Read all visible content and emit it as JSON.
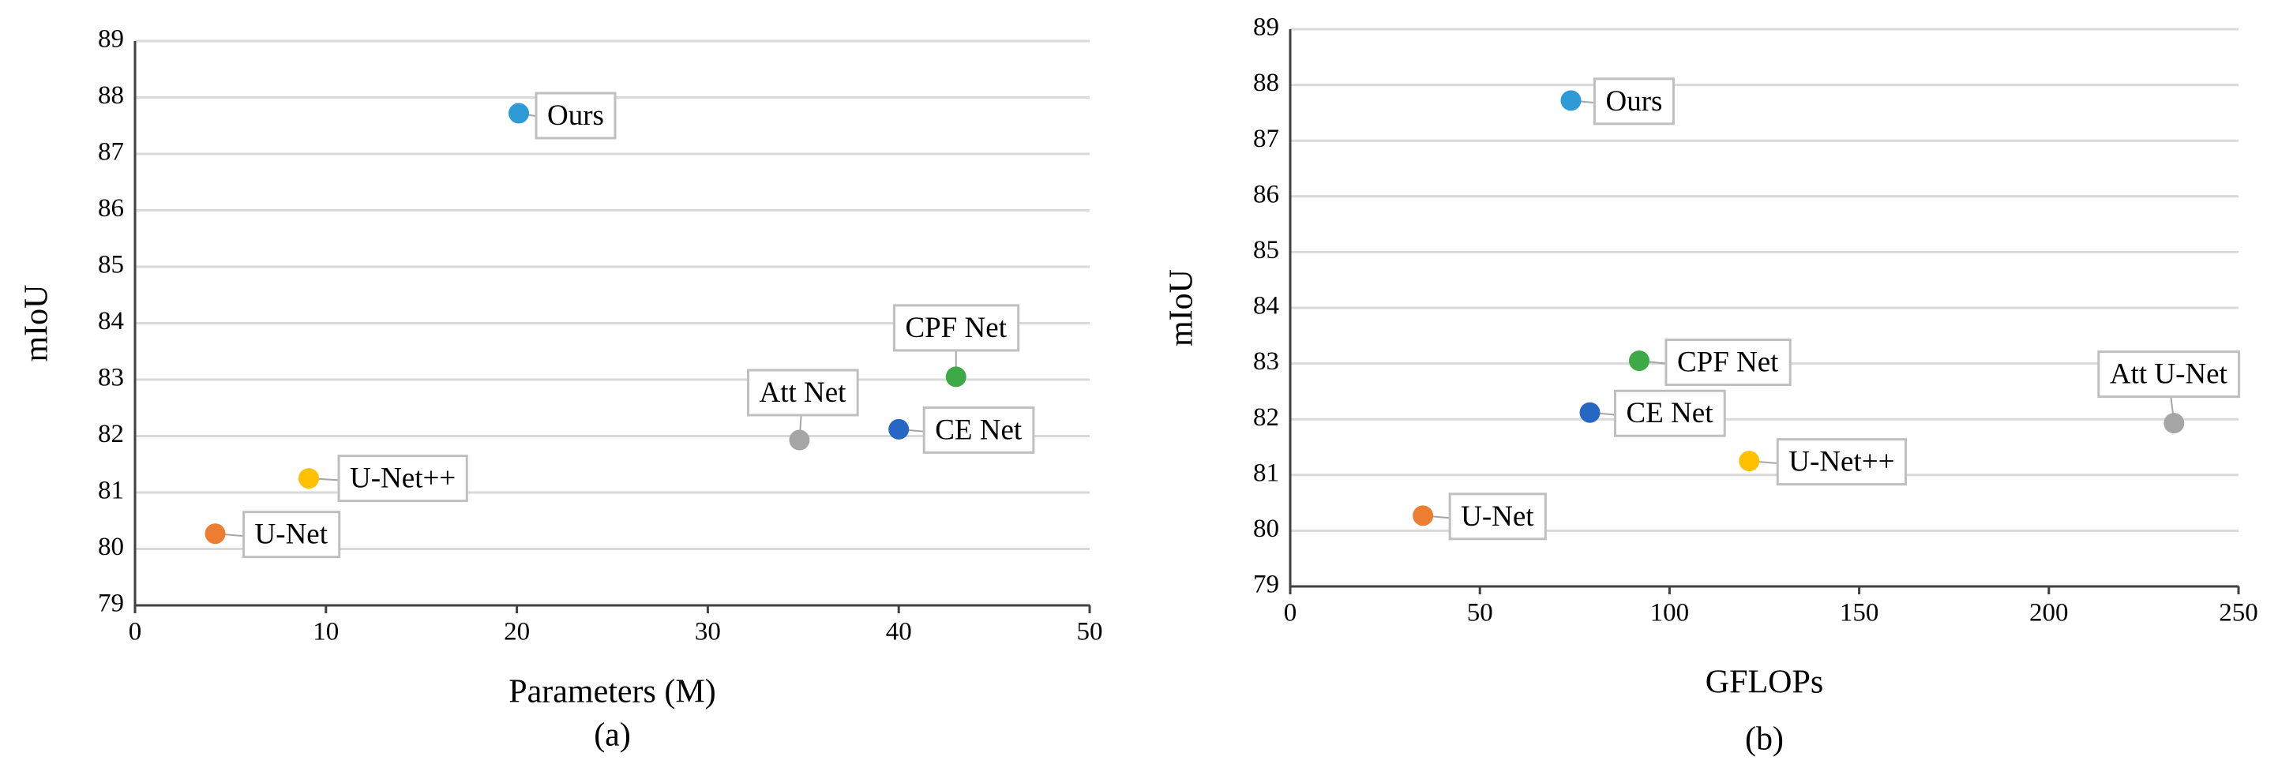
{
  "chart_data": [
    {
      "type": "scatter",
      "x_label": "Parameters (M)",
      "y_label": "mIoU",
      "caption": "(a)",
      "xlim": [
        0,
        50
      ],
      "xticks": [
        0,
        10,
        20,
        30,
        40,
        50
      ],
      "ylim": [
        79,
        89
      ],
      "yticks": [
        79,
        80,
        81,
        82,
        83,
        84,
        85,
        86,
        87,
        88,
        89
      ],
      "grid": true,
      "series": [
        {
          "name": "Ours",
          "color": "#2e9bd6",
          "x": [
            20.1
          ],
          "values": [
            87.72
          ]
        },
        {
          "name": "CPF Net",
          "color": "#3daa47",
          "x": [
            43.0
          ],
          "values": [
            83.05
          ]
        },
        {
          "name": "Att Net",
          "color": "#a5a5a5",
          "x": [
            34.8
          ],
          "values": [
            81.93
          ]
        },
        {
          "name": "CE Net",
          "color": "#2767c4",
          "x": [
            40.0
          ],
          "values": [
            82.12
          ]
        },
        {
          "name": "U-Net++",
          "color": "#ffc000",
          "x": [
            9.1
          ],
          "values": [
            81.25
          ]
        },
        {
          "name": "U-Net",
          "color": "#ed7d31",
          "x": [
            4.2
          ],
          "values": [
            80.27
          ]
        }
      ]
    },
    {
      "type": "scatter",
      "x_label": "GFLOPs",
      "y_label": "mIoU",
      "caption": "(b)",
      "xlim": [
        0,
        250
      ],
      "xticks": [
        0,
        50,
        100,
        150,
        200,
        250
      ],
      "ylim": [
        79,
        89
      ],
      "yticks": [
        79,
        80,
        81,
        82,
        83,
        84,
        85,
        86,
        87,
        88,
        89
      ],
      "grid": true,
      "series": [
        {
          "name": "Ours",
          "color": "#2e9bd6",
          "x": [
            74
          ],
          "values": [
            87.72
          ]
        },
        {
          "name": "CPF Net",
          "color": "#3daa47",
          "x": [
            92
          ],
          "values": [
            83.05
          ]
        },
        {
          "name": "CE Net",
          "color": "#2767c4",
          "x": [
            79
          ],
          "values": [
            82.12
          ]
        },
        {
          "name": "Att U-Net",
          "color": "#a5a5a5",
          "x": [
            233
          ],
          "values": [
            81.93
          ]
        },
        {
          "name": "U-Net++",
          "color": "#ffc000",
          "x": [
            121
          ],
          "values": [
            81.25
          ]
        },
        {
          "name": "U-Net",
          "color": "#ed7d31",
          "x": [
            35
          ],
          "values": [
            80.27
          ]
        }
      ]
    }
  ]
}
